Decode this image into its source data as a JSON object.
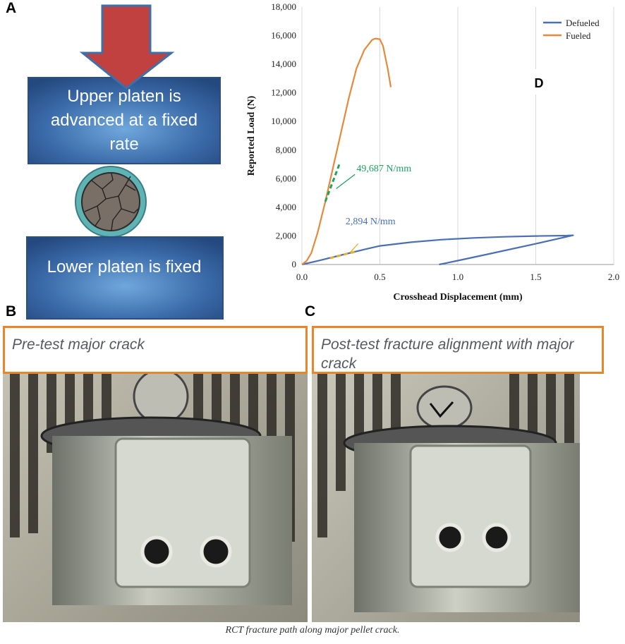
{
  "panels": {
    "a": "A",
    "b": "B",
    "c": "C",
    "d": "D"
  },
  "schematic": {
    "upper_platen_text": "Upper platen is advanced at a fixed rate",
    "lower_platen_text": "Lower platen is fixed",
    "colors": {
      "platen": "#2f5f99",
      "arrow": "#c0413f",
      "pellet_ring": "#5fb3b3",
      "pellet_fill": "#7a6f66"
    }
  },
  "chart_data": {
    "type": "line",
    "xlabel": "Crosshead Displacement (mm)",
    "ylabel": "Reported Load (N)",
    "xlim": [
      0,
      2.0
    ],
    "ylim": [
      0,
      18000
    ],
    "x_ticks": [
      "0.0",
      "0.5",
      "1.0",
      "1.5",
      "2.0"
    ],
    "y_ticks": [
      "0",
      "2,000",
      "4,000",
      "6,000",
      "8,000",
      "10,000",
      "12,000",
      "14,000",
      "16,000",
      "18,000"
    ],
    "grid": "vertical",
    "legend_position": "top-right",
    "series": [
      {
        "name": "Defueled",
        "color": "#4a6fb5",
        "x": [
          0,
          0.1,
          0.2,
          0.3,
          0.4,
          0.5,
          0.7,
          0.9,
          1.1,
          1.3,
          1.5,
          1.7,
          1.74,
          1.5,
          1.2,
          1.0,
          0.88
        ],
        "y": [
          0,
          250,
          520,
          790,
          1050,
          1300,
          1560,
          1740,
          1860,
          1940,
          1990,
          2020,
          2040,
          1450,
          740,
          270,
          0
        ]
      },
      {
        "name": "Fueled",
        "color": "#e58a3a",
        "x": [
          0,
          0.03,
          0.06,
          0.1,
          0.15,
          0.2,
          0.25,
          0.3,
          0.35,
          0.4,
          0.45,
          0.47,
          0.5,
          0.52,
          0.55,
          0.57
        ],
        "y": [
          0,
          250,
          800,
          2200,
          4400,
          6800,
          9200,
          11600,
          13700,
          15000,
          15700,
          15800,
          15750,
          15300,
          13700,
          12400
        ]
      }
    ],
    "annotations": [
      {
        "text": "49,687 N/mm",
        "color": "#1fa35f",
        "x": 0.24,
        "y": 7000
      },
      {
        "text": "2,894 N/mm",
        "color": "#4a6fb5",
        "x": 0.35,
        "y": 1600
      }
    ]
  },
  "photos": {
    "b_callout": "Pre-test major crack",
    "c_callout": "Post-test fracture alignment with major crack"
  },
  "caption": "RCT fracture path along major pellet crack."
}
